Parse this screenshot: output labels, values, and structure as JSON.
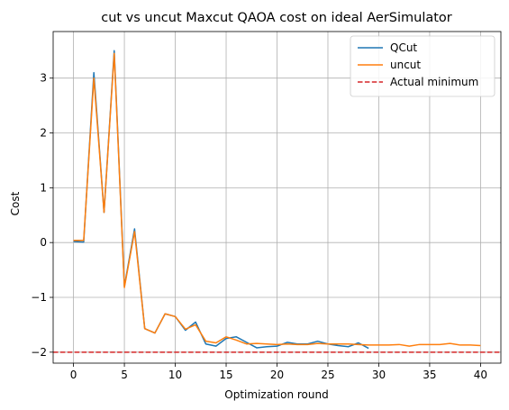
{
  "chart_data": {
    "type": "line",
    "title": "cut vs uncut Maxcut QAOA cost on ideal AerSimulator",
    "xlabel": "Optimization round",
    "ylabel": "Cost",
    "xlim": [
      -2,
      42
    ],
    "ylim": [
      -2.2,
      3.85
    ],
    "xticks": [
      0,
      5,
      10,
      15,
      20,
      25,
      30,
      35,
      40
    ],
    "yticks": [
      -2,
      -1,
      0,
      1,
      2,
      3
    ],
    "ytick_labels": [
      "−2",
      "−1",
      "0",
      "1",
      "2",
      "3"
    ],
    "grid": true,
    "legend_position": "top-right",
    "series": [
      {
        "name": "QCut",
        "color": "#1f77b4",
        "style": "solid",
        "x": [
          0,
          1,
          2,
          3,
          4,
          5,
          6,
          7,
          8,
          9,
          10,
          11,
          12,
          13,
          14,
          15,
          16,
          17,
          18,
          19,
          20,
          21,
          22,
          23,
          24,
          25,
          26,
          27,
          28,
          29
        ],
        "y": [
          0.02,
          0.01,
          3.1,
          0.55,
          3.5,
          -0.8,
          0.25,
          -1.57,
          -1.65,
          -1.3,
          -1.35,
          -1.6,
          -1.45,
          -1.85,
          -1.89,
          -1.75,
          -1.72,
          -1.82,
          -1.92,
          -1.9,
          -1.89,
          -1.82,
          -1.85,
          -1.85,
          -1.8,
          -1.85,
          -1.88,
          -1.9,
          -1.83,
          -1.93
        ]
      },
      {
        "name": "uncut",
        "color": "#ff7f0e",
        "style": "solid",
        "x": [
          0,
          1,
          2,
          3,
          4,
          5,
          6,
          7,
          8,
          9,
          10,
          11,
          12,
          13,
          14,
          15,
          16,
          17,
          18,
          19,
          20,
          21,
          22,
          23,
          24,
          25,
          26,
          27,
          28,
          29,
          30,
          31,
          32,
          33,
          34,
          35,
          36,
          37,
          38,
          39,
          40
        ],
        "y": [
          0.04,
          0.04,
          3.0,
          0.55,
          3.45,
          -0.82,
          0.2,
          -1.57,
          -1.65,
          -1.3,
          -1.35,
          -1.58,
          -1.5,
          -1.8,
          -1.83,
          -1.72,
          -1.78,
          -1.85,
          -1.84,
          -1.85,
          -1.86,
          -1.85,
          -1.86,
          -1.86,
          -1.84,
          -1.85,
          -1.85,
          -1.85,
          -1.86,
          -1.87,
          -1.87,
          -1.87,
          -1.86,
          -1.89,
          -1.86,
          -1.86,
          -1.86,
          -1.84,
          -1.87,
          -1.87,
          -1.88
        ]
      },
      {
        "name": "Actual minimum",
        "color": "#d62728",
        "style": "dashed",
        "hline": -2.0
      }
    ]
  }
}
